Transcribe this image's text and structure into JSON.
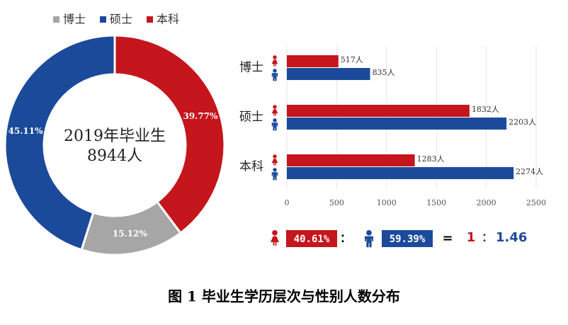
{
  "chart_data": [
    {
      "type": "donut",
      "categories": [
        "博士",
        "硕士",
        "本科"
      ],
      "values": [
        15.12,
        45.11,
        39.77
      ],
      "value_labels": [
        "15.12%",
        "45.11%",
        "39.77%"
      ],
      "colors": [
        "#a6a6a6",
        "#1c4a9a",
        "#c4161c"
      ],
      "annotations": [
        "2019年毕业生",
        "8944人"
      ],
      "legend": "top"
    },
    {
      "type": "hbar",
      "categories": [
        "博士",
        "硕士",
        "本科"
      ],
      "series": [
        {
          "color": "#c4161c",
          "values": [
            517,
            1832,
            1283
          ],
          "value_labels": [
            "517人",
            "1832人",
            "1283人"
          ]
        },
        {
          "color": "#1c4a9a",
          "values": [
            835,
            2203,
            2274
          ],
          "value_labels": [
            "835人",
            "2203人",
            "2274人"
          ]
        }
      ],
      "xlim": [
        0,
        2500
      ],
      "xticks": [
        0,
        500,
        1000,
        1500,
        2000,
        2500
      ],
      "grid": true
    }
  ],
  "ratio": {
    "female_share": "40.61%",
    "colon": "：",
    "male_share": "59.39%",
    "equals": "=",
    "left": "1",
    "right": "1.46"
  },
  "caption": "图 1  毕业生学历层次与性别人数分布"
}
